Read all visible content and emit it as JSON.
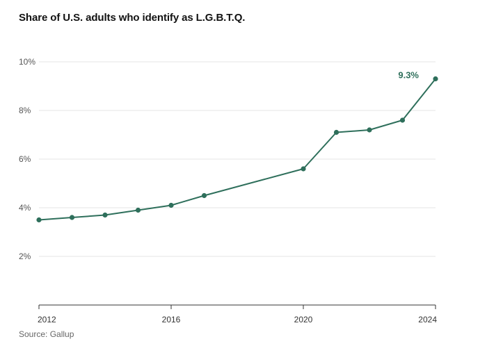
{
  "title": "Share of U.S. adults who identify as L.G.B.T.Q.",
  "source": "Source: Gallup",
  "chart_data": {
    "type": "line",
    "title": "Share of U.S. adults who identify as L.G.B.T.Q.",
    "xlabel": "",
    "ylabel": "",
    "x": [
      2012,
      2013,
      2014,
      2015,
      2016,
      2017,
      2020,
      2021,
      2022,
      2023,
      2024
    ],
    "series": [
      {
        "values": [
          3.5,
          3.6,
          3.7,
          3.9,
          4.1,
          4.5,
          5.6,
          7.1,
          7.2,
          7.6,
          9.3
        ]
      }
    ],
    "xlim": [
      2012,
      2024
    ],
    "ylim": [
      0,
      10
    ],
    "y_ticks": [
      2,
      4,
      6,
      8,
      10
    ],
    "y_tick_labels": [
      "2%",
      "4%",
      "6%",
      "8%",
      "10%"
    ],
    "x_ticks": [
      2012,
      2016,
      2020,
      2024
    ],
    "x_tick_labels": [
      "2012",
      "2016",
      "2020",
      "2024"
    ],
    "annotation": {
      "x": 2024,
      "y": 9.3,
      "text": "9.3%"
    },
    "grid": true,
    "color": "#2e6f5b"
  }
}
